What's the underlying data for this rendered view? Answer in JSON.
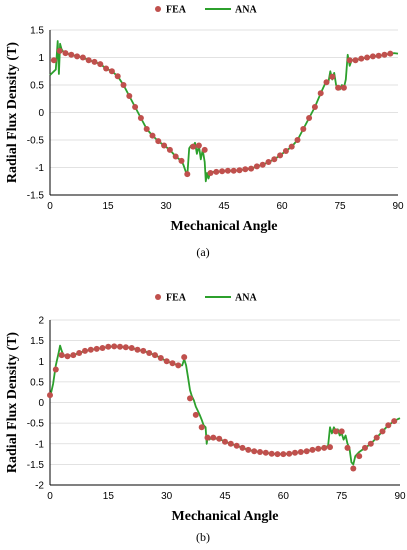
{
  "colors": {
    "fea": "#c0504d",
    "ana": "#2ca02c",
    "grid": "#d9d9d9"
  },
  "chart_data": [
    {
      "type": "line",
      "panel_label": "(a)",
      "xlabel": "Mechanical Angle",
      "ylabel": "Radial Flux Density (T)",
      "xlim": [
        0,
        90
      ],
      "ylim": [
        -1.5,
        1.5
      ],
      "xticks": [
        "0",
        "15",
        "30",
        "45",
        "60",
        "75",
        "90"
      ],
      "xtick_values": [
        0,
        15,
        30,
        45,
        60,
        75,
        90
      ],
      "yticks": [
        "1.5",
        "1",
        "0.5",
        "0",
        "-0.5",
        "-1",
        "-1.5"
      ],
      "ytick_values": [
        1.5,
        1,
        0.5,
        0,
        -0.5,
        -1,
        -1.5
      ],
      "legend": "top-center",
      "grid": "horizontal",
      "series": [
        {
          "name": "FEA",
          "style": "markers",
          "x": [
            1,
            2.5,
            4,
            5.5,
            7,
            8.5,
            10,
            11.5,
            13,
            14.5,
            16,
            17.5,
            19,
            20.5,
            22,
            23.5,
            25,
            26.5,
            28,
            29.5,
            31,
            32.5,
            34,
            35.5,
            37,
            38.5,
            40,
            41.5,
            43,
            44.5,
            46,
            47.5,
            49,
            50.5,
            52,
            53.5,
            55,
            56.5,
            58,
            59.5,
            61,
            62.5,
            64,
            65.5,
            67,
            68.5,
            70,
            71.5,
            73,
            74.5,
            76,
            77.5,
            79,
            80.5,
            82,
            83.5,
            85,
            86.5,
            88
          ],
          "y": [
            0.95,
            1.12,
            1.08,
            1.05,
            1.02,
            1.0,
            0.95,
            0.92,
            0.88,
            0.8,
            0.75,
            0.66,
            0.5,
            0.3,
            0.1,
            -0.1,
            -0.3,
            -0.42,
            -0.52,
            -0.6,
            -0.68,
            -0.8,
            -0.88,
            -1.12,
            -0.62,
            -0.6,
            -0.68,
            -1.1,
            -1.08,
            -1.07,
            -1.06,
            -1.06,
            -1.05,
            -1.03,
            -1.02,
            -0.98,
            -0.95,
            -0.9,
            -0.85,
            -0.78,
            -0.7,
            -0.62,
            -0.5,
            -0.3,
            -0.1,
            0.1,
            0.35,
            0.55,
            0.65,
            0.45,
            0.45,
            0.95,
            0.95,
            0.98,
            1.0,
            1.02,
            1.03,
            1.05,
            1.07
          ]
        },
        {
          "name": "ANA",
          "style": "line",
          "x": [
            0,
            1,
            1.5,
            2,
            2.3,
            2.6,
            3,
            3.5,
            4,
            5.5,
            7,
            8.5,
            10,
            11.5,
            13,
            14.5,
            16,
            17.5,
            19,
            20.5,
            22,
            23.5,
            25,
            26.5,
            28,
            29.5,
            31,
            32.5,
            34,
            34.5,
            35,
            35.5,
            36,
            36.5,
            37,
            37.5,
            38,
            38.5,
            39,
            39.5,
            40,
            40.3,
            40.6,
            41,
            41.5,
            43,
            44.5,
            46,
            47.5,
            49,
            50.5,
            52,
            53.5,
            55,
            56.5,
            58,
            59.5,
            61,
            62.5,
            64,
            65.5,
            67,
            68.5,
            70,
            71,
            71.5,
            72,
            72.5,
            73,
            73.5,
            74,
            74.5,
            75,
            75.5,
            76,
            76.5,
            77,
            77.5,
            78,
            79,
            80.5,
            82,
            83.5,
            85,
            86.5,
            88,
            89,
            90
          ],
          "y": [
            0.68,
            0.75,
            0.78,
            1.3,
            0.7,
            1.25,
            1.15,
            1.1,
            1.08,
            1.05,
            1.02,
            1.0,
            0.95,
            0.92,
            0.88,
            0.8,
            0.75,
            0.66,
            0.5,
            0.3,
            0.1,
            -0.1,
            -0.3,
            -0.42,
            -0.52,
            -0.6,
            -0.68,
            -0.8,
            -0.88,
            -0.95,
            -1.05,
            -1.15,
            -0.65,
            -0.6,
            -0.62,
            -0.55,
            -0.75,
            -0.6,
            -0.85,
            -0.68,
            -0.9,
            -1.25,
            -1.1,
            -1.2,
            -1.08,
            -1.08,
            -1.07,
            -1.06,
            -1.06,
            -1.05,
            -1.03,
            -1.02,
            -0.98,
            -0.95,
            -0.9,
            -0.85,
            -0.78,
            -0.7,
            -0.62,
            -0.5,
            -0.3,
            -0.1,
            0.1,
            0.35,
            0.5,
            0.58,
            0.55,
            0.75,
            0.6,
            0.72,
            0.5,
            0.45,
            0.42,
            0.5,
            0.45,
            0.6,
            1.05,
            0.85,
            0.95,
            0.95,
            0.98,
            1.0,
            1.02,
            1.03,
            1.05,
            1.07,
            1.08,
            1.07
          ]
        }
      ]
    },
    {
      "type": "line",
      "panel_label": "(b)",
      "xlabel": "Mechanical Angle",
      "ylabel": "Radial Flux Density (T)",
      "xlim": [
        0,
        90
      ],
      "ylim": [
        -2,
        2
      ],
      "xticks": [
        "0",
        "15",
        "30",
        "45",
        "60",
        "75",
        "90"
      ],
      "xtick_values": [
        0,
        15,
        30,
        45,
        60,
        75,
        90
      ],
      "yticks": [
        "2",
        "1.5",
        "1",
        "0.5",
        "0",
        "-0.5",
        "-1",
        "-1.5",
        "-2"
      ],
      "ytick_values": [
        2,
        1.5,
        1,
        0.5,
        0,
        -0.5,
        -1,
        -1.5,
        -2
      ],
      "legend": "top-center",
      "grid": "horizontal",
      "series": [
        {
          "name": "FEA",
          "style": "markers",
          "x": [
            0,
            1.5,
            3,
            4.5,
            6,
            7.5,
            9,
            10.5,
            12,
            13.5,
            15,
            16.5,
            18,
            19.5,
            21,
            22.5,
            24,
            25.5,
            27,
            28.5,
            30,
            31.5,
            33,
            34.5,
            36,
            37.5,
            39,
            40.5,
            42,
            43.5,
            45,
            46.5,
            48,
            49.5,
            51,
            52.5,
            54,
            55.5,
            57,
            58.5,
            60,
            61.5,
            63,
            64.5,
            66,
            67.5,
            69,
            70.5,
            72,
            73.5,
            75,
            76.5,
            78,
            79.5,
            81,
            82.5,
            84,
            85.5,
            87,
            88.5
          ],
          "y": [
            0.18,
            0.8,
            1.15,
            1.12,
            1.15,
            1.2,
            1.25,
            1.28,
            1.3,
            1.32,
            1.35,
            1.36,
            1.35,
            1.34,
            1.32,
            1.28,
            1.25,
            1.2,
            1.15,
            1.08,
            1.0,
            0.95,
            0.9,
            1.1,
            0.1,
            -0.3,
            -0.6,
            -0.85,
            -0.85,
            -0.88,
            -0.95,
            -1.0,
            -1.05,
            -1.1,
            -1.15,
            -1.18,
            -1.2,
            -1.22,
            -1.24,
            -1.25,
            -1.25,
            -1.24,
            -1.22,
            -1.2,
            -1.18,
            -1.15,
            -1.12,
            -1.1,
            -1.08,
            -0.7,
            -0.7,
            -1.1,
            -1.6,
            -1.3,
            -1.1,
            -1.0,
            -0.85,
            -0.7,
            -0.55,
            -0.45
          ]
        },
        {
          "name": "ANA",
          "style": "line",
          "x": [
            0,
            0.8,
            1.5,
            2.2,
            2.6,
            3,
            3.5,
            4.5,
            6,
            7.5,
            9,
            10.5,
            12,
            13.5,
            15,
            16.5,
            18,
            19.5,
            21,
            22.5,
            24,
            25.5,
            27,
            28.5,
            30,
            31.5,
            33,
            34,
            34.5,
            35,
            35.5,
            36,
            36.5,
            37,
            37.5,
            38,
            38.5,
            39,
            39.5,
            40,
            40.3,
            40.6,
            41,
            41.5,
            42,
            43.5,
            45,
            46.5,
            48,
            49.5,
            51,
            52.5,
            54,
            55.5,
            57,
            58.5,
            60,
            61.5,
            63,
            64.5,
            66,
            67.5,
            69,
            70.5,
            71.5,
            72,
            72.5,
            73,
            73.5,
            74,
            74.5,
            75,
            75.5,
            76,
            76.5,
            77,
            77.5,
            78,
            78.5,
            79.5,
            81,
            82.5,
            84,
            85.5,
            87,
            88.5,
            89.5,
            90
          ],
          "y": [
            0.12,
            0.45,
            0.9,
            1.2,
            1.38,
            1.25,
            1.15,
            1.12,
            1.15,
            1.2,
            1.25,
            1.28,
            1.3,
            1.32,
            1.35,
            1.36,
            1.35,
            1.34,
            1.32,
            1.28,
            1.25,
            1.2,
            1.15,
            1.08,
            1.0,
            0.95,
            0.9,
            0.9,
            1.05,
            0.9,
            0.6,
            0.3,
            0.15,
            0.05,
            -0.1,
            -0.2,
            -0.3,
            -0.42,
            -0.55,
            -0.6,
            -1.0,
            -0.8,
            -0.9,
            -0.85,
            -0.87,
            -0.88,
            -0.95,
            -1.0,
            -1.05,
            -1.1,
            -1.15,
            -1.18,
            -1.2,
            -1.22,
            -1.24,
            -1.25,
            -1.25,
            -1.24,
            -1.22,
            -1.2,
            -1.18,
            -1.15,
            -1.12,
            -1.1,
            -1.05,
            -0.6,
            -0.75,
            -0.6,
            -0.7,
            -0.65,
            -0.8,
            -0.75,
            -0.9,
            -0.8,
            -1.0,
            -1.1,
            -1.45,
            -1.5,
            -1.3,
            -1.2,
            -1.1,
            -1.0,
            -0.85,
            -0.7,
            -0.55,
            -0.45,
            -0.4,
            -0.38
          ]
        }
      ]
    }
  ]
}
